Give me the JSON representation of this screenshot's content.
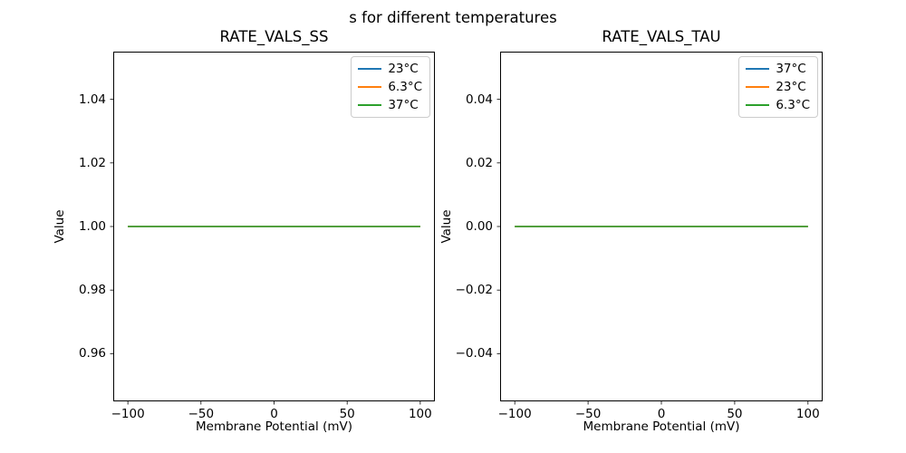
{
  "figure": {
    "suptitle": "s for different temperatures",
    "background_color": "#ffffff",
    "axes_color": "#000000"
  },
  "chart_data": [
    {
      "type": "line",
      "title": "RATE_VALS_SS",
      "xlabel": "Membrane Potential (mV)",
      "ylabel": "Value",
      "xlim": [
        -110,
        110
      ],
      "ylim": [
        0.945,
        1.055
      ],
      "xticks": [
        -100,
        -50,
        0,
        50,
        100
      ],
      "xtick_labels": [
        "−100",
        "−50",
        "0",
        "50",
        "100"
      ],
      "yticks": [
        0.96,
        0.98,
        1.0,
        1.02,
        1.04
      ],
      "ytick_labels": [
        "0.96",
        "0.98",
        "1.00",
        "1.02",
        "1.04"
      ],
      "grid": false,
      "legend_position": "upper right",
      "series": [
        {
          "name": "23°C",
          "color": "#1f77b4",
          "x": [
            -100,
            100
          ],
          "y": [
            1.0,
            1.0
          ]
        },
        {
          "name": "6.3°C",
          "color": "#ff7f0e",
          "x": [
            -100,
            100
          ],
          "y": [
            1.0,
            1.0
          ]
        },
        {
          "name": "37°C",
          "color": "#2ca02c",
          "x": [
            -100,
            100
          ],
          "y": [
            1.0,
            1.0
          ]
        }
      ]
    },
    {
      "type": "line",
      "title": "RATE_VALS_TAU",
      "xlabel": "Membrane Potential (mV)",
      "ylabel": "Value",
      "xlim": [
        -110,
        110
      ],
      "ylim": [
        -0.055,
        0.055
      ],
      "xticks": [
        -100,
        -50,
        0,
        50,
        100
      ],
      "xtick_labels": [
        "−100",
        "−50",
        "0",
        "50",
        "100"
      ],
      "yticks": [
        -0.04,
        -0.02,
        0.0,
        0.02,
        0.04
      ],
      "ytick_labels": [
        "−0.04",
        "−0.02",
        "0.00",
        "0.02",
        "0.04"
      ],
      "grid": false,
      "legend_position": "upper right",
      "series": [
        {
          "name": "37°C",
          "color": "#1f77b4",
          "x": [
            -100,
            100
          ],
          "y": [
            0.0,
            0.0
          ]
        },
        {
          "name": "23°C",
          "color": "#ff7f0e",
          "x": [
            -100,
            100
          ],
          "y": [
            0.0,
            0.0
          ]
        },
        {
          "name": "6.3°C",
          "color": "#2ca02c",
          "x": [
            -100,
            100
          ],
          "y": [
            0.0,
            0.0
          ]
        }
      ]
    }
  ]
}
